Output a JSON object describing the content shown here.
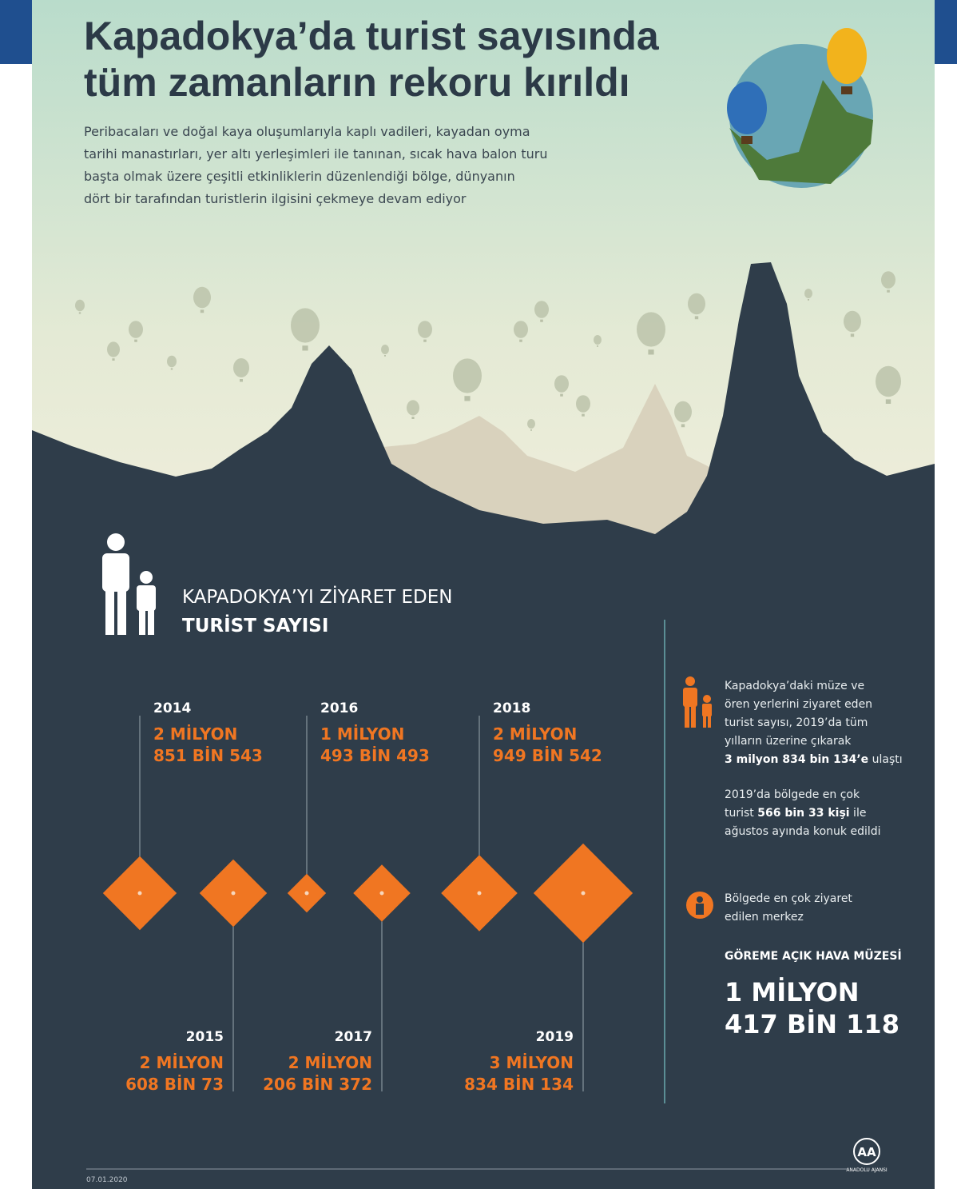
{
  "header": {
    "title_lines": [
      "Kapadokya’da turist sayısında",
      "tüm zamanların rekoru kırıldı"
    ],
    "description_lines": [
      "Peribacaları ve doğal kaya oluşumlarıyla kaplı vadileri, kayadan oyma",
      "tarihi manastırları, yer altı yerleşimleri ile tanınan, sıcak hava balon turu",
      "başta olmak üzere çeşitli etkinliklerin düzenlendiği bölge, dünyanın",
      "dört bir tarafından turistlerin ilgisini çekmeye devam ediyor"
    ]
  },
  "section": {
    "title": "KAPADOKYA’YI ZİYARET EDEN",
    "subtitle": "TURİST SAYISI"
  },
  "chart_data": {
    "type": "diamond",
    "categories": [
      "2014",
      "2015",
      "2016",
      "2017",
      "2018",
      "2019"
    ],
    "values": [
      2851543,
      2608073,
      1493493,
      2206372,
      2949542,
      3834134
    ],
    "value_labels": [
      [
        "2 MİLYON",
        "851 BİN 543"
      ],
      [
        "2 MİLYON",
        "608 BİN 73"
      ],
      [
        "1 MİLYON",
        "493 BİN 493"
      ],
      [
        "2 MİLYON",
        "206 BİN 372"
      ],
      [
        "2 MİLYON",
        "949 BİN 542"
      ],
      [
        "3 MİLYON",
        "834 BİN 134"
      ]
    ],
    "color": "#f07622"
  },
  "sidebar": {
    "note1": {
      "lines": [
        "Kapadokya’daki müze ve",
        "ören yerlerini ziyaret eden",
        "turist sayısı, 2019’da tüm",
        "yılların üzerine çıkarak"
      ],
      "bold": "3 milyon 834 bin 134’e",
      "end": " ulaştı"
    },
    "note2": {
      "line1": "2019’da bölgede en çok",
      "start": "turist ",
      "bold": "566 bin 33 kişi",
      "end": " ile",
      "line3": "ağustos ayında konuk edildi"
    },
    "note3": {
      "lines": [
        "Bölgede en çok ziyaret",
        "edilen merkez"
      ],
      "place": "GÖREME AÇIK HAVA MÜZESİ",
      "count_lines": [
        "1 MİLYON",
        "417 BİN 118"
      ]
    }
  },
  "footer": {
    "date": "07.01.2020",
    "logo": "AA",
    "agency": "ANADOLU AJANSI"
  }
}
